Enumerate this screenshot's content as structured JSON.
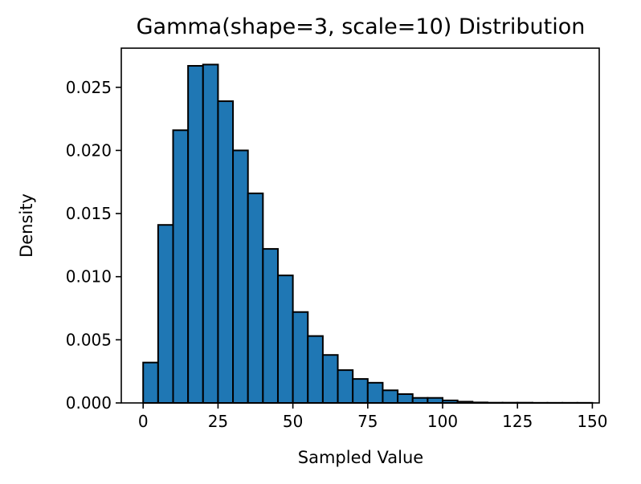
{
  "chart_data": {
    "type": "bar",
    "title": "Gamma(shape=3, scale=10) Distribution",
    "xlabel": "Sampled Value",
    "ylabel": "Density",
    "bin_width": 5,
    "bins_start": [
      0,
      5,
      10,
      15,
      20,
      25,
      30,
      35,
      40,
      45,
      50,
      55,
      60,
      65,
      70,
      75,
      80,
      85,
      90,
      95,
      100,
      105,
      110,
      115,
      120,
      125,
      130,
      135,
      140,
      145
    ],
    "values": [
      0.0032,
      0.0141,
      0.0216,
      0.0267,
      0.0268,
      0.0239,
      0.02,
      0.0166,
      0.0122,
      0.0101,
      0.0072,
      0.0053,
      0.0038,
      0.0026,
      0.0019,
      0.0016,
      0.001,
      0.0007,
      0.0004,
      0.0004,
      0.0002,
      0.0001,
      4e-05,
      2e-05,
      2e-05,
      2e-05,
      1e-05,
      1e-05,
      1e-05,
      1e-05
    ],
    "xlim": [
      -7.3,
      152.3
    ],
    "ylim": [
      0,
      0.0281
    ],
    "x_ticks": [
      0,
      25,
      50,
      75,
      100,
      125,
      150
    ],
    "x_tick_labels": [
      "0",
      "25",
      "50",
      "75",
      "100",
      "125",
      "150"
    ],
    "y_ticks": [
      0,
      0.005,
      0.01,
      0.015,
      0.02,
      0.025
    ],
    "y_tick_labels": [
      "0.000",
      "0.005",
      "0.010",
      "0.015",
      "0.020",
      "0.025"
    ],
    "bar_color": "#1f77b4",
    "edge_color": "#000000",
    "grid": false
  }
}
